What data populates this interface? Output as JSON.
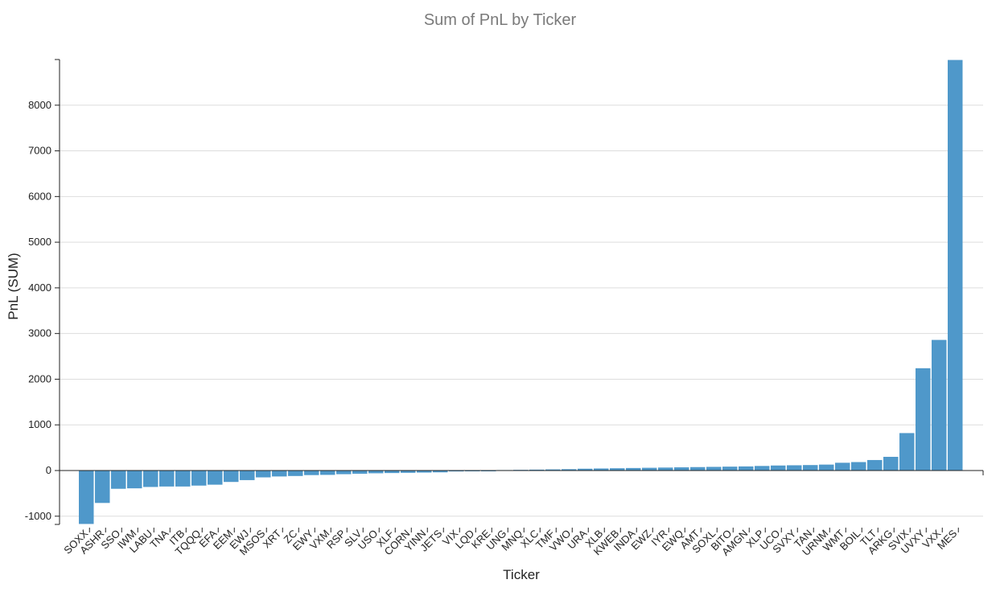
{
  "chart_data": {
    "type": "bar",
    "title": "Sum of PnL by Ticker",
    "xlabel": "Ticker",
    "ylabel": "PnL (SUM)",
    "ylim": [
      -1180,
      9000
    ],
    "yticks": [
      -1000,
      0,
      1000,
      2000,
      3000,
      4000,
      5000,
      6000,
      7000,
      8000
    ],
    "grid": true,
    "bar_color": "#4f98ca",
    "categories": [
      "SOXX",
      "ASHR",
      "SSO",
      "IWM",
      "LABU",
      "TNA",
      "ITB",
      "TQQQ",
      "EFA",
      "EEM",
      "EWJ",
      "MSOS",
      "XRT",
      "ZC",
      "EWY",
      "VXM",
      "RSP",
      "SLV",
      "USO",
      "XLF",
      "CORN",
      "YINN",
      "JETS",
      "VIX",
      "LQD",
      "KRE",
      "UNG",
      "MNQ",
      "XLC",
      "TMF",
      "VWO",
      "URA",
      "XLB",
      "KWEB",
      "INDA",
      "EWZ",
      "IYR",
      "EWQ",
      "AMT",
      "SOXL",
      "BITO",
      "AMGN",
      "XLP",
      "UCO",
      "SVXY",
      "TAN",
      "URNM",
      "WMT",
      "BOIL",
      "TLT",
      "ARKG",
      "SVIX",
      "UVXY",
      "VXX",
      "MES"
    ],
    "values": [
      -1170,
      -710,
      -400,
      -390,
      -360,
      -350,
      -350,
      -330,
      -310,
      -250,
      -210,
      -150,
      -130,
      -120,
      -100,
      -95,
      -80,
      -70,
      -60,
      -55,
      -50,
      -45,
      -40,
      -20,
      -15,
      -10,
      10,
      15,
      20,
      25,
      30,
      40,
      45,
      50,
      55,
      60,
      65,
      70,
      75,
      80,
      85,
      90,
      100,
      110,
      115,
      120,
      130,
      170,
      185,
      230,
      300,
      820,
      2240,
      2860,
      8990
    ]
  }
}
